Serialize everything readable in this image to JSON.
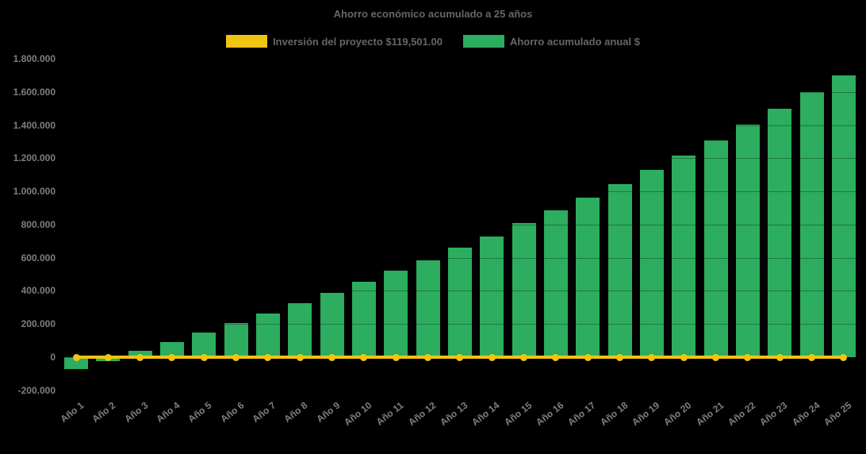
{
  "title": "Ahorro económico acumulado a 25 años",
  "legend": {
    "investment": {
      "label": "Inversión del proyecto $119,501.00",
      "color": "#F0C413"
    },
    "savings": {
      "label": "Ahorro acumulado anual $",
      "color": "#2DAD5F"
    }
  },
  "colors": {
    "background": "#000000",
    "bar_green": "#2DAD5F",
    "line_yellow": "#F0C413",
    "title_text": "#666666",
    "axis_text": "#7f7f7f"
  },
  "chart_data": {
    "type": "bar",
    "title": "Ahorro económico acumulado a 25 años",
    "xlabel": "",
    "ylabel": "",
    "ylim": [
      -200000,
      1800000
    ],
    "grid": "subtle dark ticks over bars every 200000",
    "legend_position": "top-center",
    "categories": [
      "Año 1",
      "Año 2",
      "Año 3",
      "Año 4",
      "Año 5",
      "Año 6",
      "Año 7",
      "Año 8",
      "Año 9",
      "Año 10",
      "Año 11",
      "Año 12",
      "Año 13",
      "Año 14",
      "Año 15",
      "Año 16",
      "Año 17",
      "Año 18",
      "Año 19",
      "Año 20",
      "Año 21",
      "Año 22",
      "Año 23",
      "Año 24",
      "Año 25"
    ],
    "series": [
      {
        "name": "Ahorro acumulado anual $",
        "type": "bar",
        "color": "#2DAD5F",
        "values": [
          -72000,
          -22000,
          38000,
          91000,
          147000,
          205000,
          263000,
          324000,
          386000,
          455000,
          520000,
          585000,
          660000,
          730000,
          807000,
          885000,
          963000,
          1044000,
          1132000,
          1217000,
          1308000,
          1402000,
          1499000,
          1598000,
          1699000
        ]
      },
      {
        "name": "Inversión del proyecto $119,501.00",
        "type": "line",
        "color": "#F0C413",
        "marker": "circle",
        "values": [
          0,
          0,
          0,
          0,
          0,
          0,
          0,
          0,
          0,
          0,
          0,
          0,
          0,
          0,
          0,
          0,
          0,
          0,
          0,
          0,
          0,
          0,
          0,
          0,
          0
        ]
      }
    ],
    "ytick_values": [
      1800000,
      1600000,
      1400000,
      1200000,
      1000000,
      800000,
      600000,
      400000,
      200000,
      0,
      -200000
    ],
    "ytick_labels": [
      "1.800.000",
      "1.600.000",
      "1.400.000",
      "1.200.000",
      "1.000.000",
      "800.000",
      "600.000",
      "400.000",
      "200.000",
      "0",
      "-200.000"
    ]
  }
}
